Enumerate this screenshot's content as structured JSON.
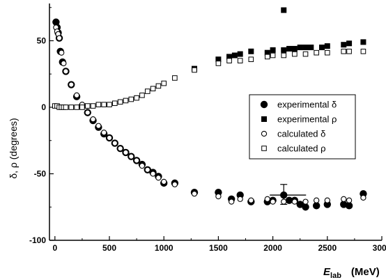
{
  "chart_data": {
    "type": "scatter",
    "title": "",
    "xlabel": {
      "main": "E",
      "sub": "lab",
      "unit": "(MeV)"
    },
    "ylabel": "δ, ρ (degrees)",
    "xlim": [
      -50,
      3000
    ],
    "ylim": [
      -100,
      78
    ],
    "xticks": [
      0,
      500,
      1000,
      1500,
      2000,
      2500,
      3000
    ],
    "yticks": [
      -100,
      -50,
      0,
      50
    ],
    "legend_position": "right",
    "series": [
      {
        "name": "experimental δ",
        "marker": "filled-circle",
        "points": [
          [
            10,
            64
          ],
          [
            20,
            60
          ],
          [
            30,
            56
          ],
          [
            40,
            52
          ],
          [
            50,
            42
          ],
          [
            70,
            34
          ],
          [
            100,
            27
          ],
          [
            150,
            17
          ],
          [
            200,
            8
          ],
          [
            250,
            1
          ],
          [
            300,
            -4
          ],
          [
            350,
            -10
          ],
          [
            400,
            -15
          ],
          [
            450,
            -20
          ],
          [
            500,
            -23
          ],
          [
            550,
            -27
          ],
          [
            600,
            -31
          ],
          [
            650,
            -34
          ],
          [
            700,
            -37
          ],
          [
            750,
            -40
          ],
          [
            800,
            -43
          ],
          [
            850,
            -47
          ],
          [
            900,
            -49
          ],
          [
            950,
            -52
          ],
          [
            1000,
            -57
          ],
          [
            1100,
            -57
          ],
          [
            1280,
            -64
          ],
          [
            1500,
            -64
          ],
          [
            1620,
            -69
          ],
          [
            1700,
            -66
          ],
          [
            1800,
            -71
          ],
          [
            1950,
            -71
          ],
          [
            2000,
            -70
          ],
          [
            2100,
            -66
          ],
          [
            2150,
            -70
          ],
          [
            2200,
            -70
          ],
          [
            2250,
            -73
          ],
          [
            2300,
            -75
          ],
          [
            2400,
            -74
          ],
          [
            2500,
            -73
          ],
          [
            2650,
            -73
          ],
          [
            2700,
            -74
          ],
          [
            2830,
            -65
          ]
        ],
        "error_bars": [
          {
            "x": 2100,
            "y": -66,
            "low": -73,
            "high": -58
          }
        ]
      },
      {
        "name": "experimental ρ",
        "marker": "filled-square",
        "points": [
          [
            1280,
            29
          ],
          [
            1500,
            36
          ],
          [
            1600,
            38
          ],
          [
            1650,
            39
          ],
          [
            1700,
            40
          ],
          [
            1800,
            42
          ],
          [
            1950,
            41
          ],
          [
            2000,
            43
          ],
          [
            2100,
            43
          ],
          [
            2150,
            44
          ],
          [
            2200,
            44
          ],
          [
            2250,
            45
          ],
          [
            2300,
            45
          ],
          [
            2350,
            45
          ],
          [
            2450,
            45
          ],
          [
            2500,
            46
          ],
          [
            2650,
            47
          ],
          [
            2700,
            48
          ],
          [
            2830,
            49
          ],
          [
            2100,
            73
          ]
        ]
      },
      {
        "name": "calculated δ",
        "marker": "open-circle",
        "points": [
          [
            10,
            60
          ],
          [
            20,
            57
          ],
          [
            30,
            55
          ],
          [
            40,
            52
          ],
          [
            60,
            41
          ],
          [
            80,
            33
          ],
          [
            100,
            27
          ],
          [
            150,
            17
          ],
          [
            200,
            9
          ],
          [
            250,
            2
          ],
          [
            300,
            -4
          ],
          [
            350,
            -9
          ],
          [
            400,
            -14
          ],
          [
            450,
            -19
          ],
          [
            500,
            -23
          ],
          [
            550,
            -27
          ],
          [
            600,
            -31
          ],
          [
            650,
            -34
          ],
          [
            700,
            -37
          ],
          [
            750,
            -40
          ],
          [
            800,
            -44
          ],
          [
            850,
            -47
          ],
          [
            900,
            -50
          ],
          [
            950,
            -53
          ],
          [
            1000,
            -56
          ],
          [
            1100,
            -58
          ],
          [
            1280,
            -65
          ],
          [
            1500,
            -67
          ],
          [
            1620,
            -71
          ],
          [
            1700,
            -69
          ],
          [
            1800,
            -70
          ],
          [
            1950,
            -69
          ],
          [
            2000,
            -71
          ],
          [
            2100,
            -71
          ],
          [
            2200,
            -71
          ],
          [
            2300,
            -71
          ],
          [
            2400,
            -70
          ],
          [
            2500,
            -70
          ],
          [
            2650,
            -69
          ],
          [
            2700,
            -70
          ],
          [
            2830,
            -68
          ]
        ]
      },
      {
        "name": "calculated ρ",
        "marker": "open-square",
        "points": [
          [
            0,
            1
          ],
          [
            20,
            1
          ],
          [
            40,
            0
          ],
          [
            60,
            0
          ],
          [
            80,
            0
          ],
          [
            100,
            0
          ],
          [
            150,
            0
          ],
          [
            200,
            0
          ],
          [
            250,
            0
          ],
          [
            300,
            1
          ],
          [
            350,
            1
          ],
          [
            400,
            2
          ],
          [
            450,
            2
          ],
          [
            500,
            2
          ],
          [
            550,
            3
          ],
          [
            600,
            4
          ],
          [
            650,
            5
          ],
          [
            700,
            6
          ],
          [
            750,
            7
          ],
          [
            800,
            9
          ],
          [
            850,
            12
          ],
          [
            900,
            14
          ],
          [
            950,
            16
          ],
          [
            1000,
            18
          ],
          [
            1100,
            22
          ],
          [
            1280,
            28
          ],
          [
            1500,
            33
          ],
          [
            1600,
            35
          ],
          [
            1700,
            35
          ],
          [
            1800,
            36
          ],
          [
            1950,
            38
          ],
          [
            2000,
            39
          ],
          [
            2100,
            39
          ],
          [
            2200,
            40
          ],
          [
            2300,
            40
          ],
          [
            2400,
            41
          ],
          [
            2500,
            41
          ],
          [
            2650,
            42
          ],
          [
            2700,
            42
          ],
          [
            2830,
            42
          ]
        ]
      }
    ]
  }
}
